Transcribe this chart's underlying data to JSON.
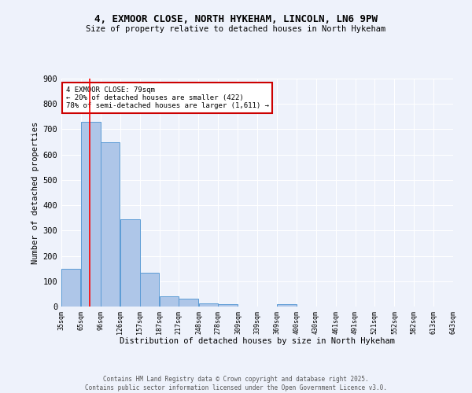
{
  "title": "4, EXMOOR CLOSE, NORTH HYKEHAM, LINCOLN, LN6 9PW",
  "subtitle": "Size of property relative to detached houses in North Hykeham",
  "xlabel": "Distribution of detached houses by size in North Hykeham",
  "ylabel": "Number of detached properties",
  "bar_color": "#aec6e8",
  "bar_edge_color": "#5b9bd5",
  "bg_color": "#eef2fb",
  "grid_color": "#ffffff",
  "red_line_x": 79,
  "annotation_text": "4 EXMOOR CLOSE: 79sqm\n← 20% of detached houses are smaller (422)\n78% of semi-detached houses are larger (1,611) →",
  "annotation_box_color": "#ffffff",
  "annotation_box_edge": "#cc0000",
  "bins": [
    35,
    65,
    96,
    126,
    157,
    187,
    217,
    248,
    278,
    309,
    339,
    369,
    400,
    430,
    461,
    491,
    521,
    552,
    582,
    613,
    643
  ],
  "bar_heights": [
    150,
    728,
    648,
    343,
    133,
    40,
    30,
    13,
    8,
    0,
    0,
    8,
    0,
    0,
    0,
    0,
    0,
    0,
    0,
    0
  ],
  "tick_labels": [
    "35sqm",
    "65sqm",
    "96sqm",
    "126sqm",
    "157sqm",
    "187sqm",
    "217sqm",
    "248sqm",
    "278sqm",
    "309sqm",
    "339sqm",
    "369sqm",
    "400sqm",
    "430sqm",
    "461sqm",
    "491sqm",
    "521sqm",
    "552sqm",
    "582sqm",
    "613sqm",
    "643sqm"
  ],
  "footer_text": "Contains HM Land Registry data © Crown copyright and database right 2025.\nContains public sector information licensed under the Open Government Licence v3.0.",
  "ylim": [
    0,
    900
  ],
  "yticks": [
    0,
    100,
    200,
    300,
    400,
    500,
    600,
    700,
    800,
    900
  ]
}
